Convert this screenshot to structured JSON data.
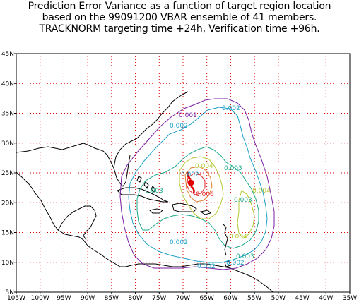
{
  "title_lines": [
    "Prediction Error Variance as a function of target region location",
    "based on the 99091200 VBAR ensemble of 41 members.",
    "TRACKNORM targeting time +24h, Verification time +96h."
  ],
  "axes": {
    "lon_labels": [
      "105W",
      "100W",
      "95W",
      "90W",
      "85W",
      "80W",
      "75W",
      "70W",
      "65W",
      "60W",
      "55W",
      "50W",
      "45W",
      "40W",
      "35W"
    ],
    "lat_labels": [
      "5N",
      "10N",
      "15N",
      "20N",
      "25N",
      "30N",
      "35N",
      "40N",
      "45N"
    ],
    "lon_range": [
      -105,
      -35
    ],
    "lat_range": [
      5,
      45
    ],
    "grid": true,
    "grid_style": "red dotted"
  },
  "contour_labels": [
    {
      "text": "0.001",
      "color": "#7b1fa2"
    },
    {
      "text": "0.002",
      "color": "#1aa0c8"
    },
    {
      "text": "0.002",
      "color": "#1aa0c8"
    },
    {
      "text": "0.002",
      "color": "#1aa0c8"
    },
    {
      "text": "0.002",
      "color": "#1aa0c8"
    },
    {
      "text": "0.002",
      "color": "#1aa0c8"
    },
    {
      "text": "0.002",
      "color": "#1aa0c8"
    },
    {
      "text": "0.003",
      "color": "#1aa88a"
    },
    {
      "text": "0.003",
      "color": "#1aa88a"
    },
    {
      "text": "0.003",
      "color": "#1aa88a"
    },
    {
      "text": "0.003",
      "color": "#1aa88a"
    },
    {
      "text": "0.004",
      "color": "#b5c830"
    },
    {
      "text": "0.004",
      "color": "#b5c830"
    },
    {
      "text": "0.004",
      "color": "#b5c830"
    },
    {
      "text": "0.006",
      "color": "#e02020"
    }
  ],
  "colors": {
    "grid": "#e00000",
    "coast": "#000000",
    "level_001": "#7b1fa2",
    "level_002": "#1aa0c8",
    "level_003": "#1aa88a",
    "level_004": "#b5c830",
    "level_005": "#e08030",
    "level_006": "#e02020"
  }
}
